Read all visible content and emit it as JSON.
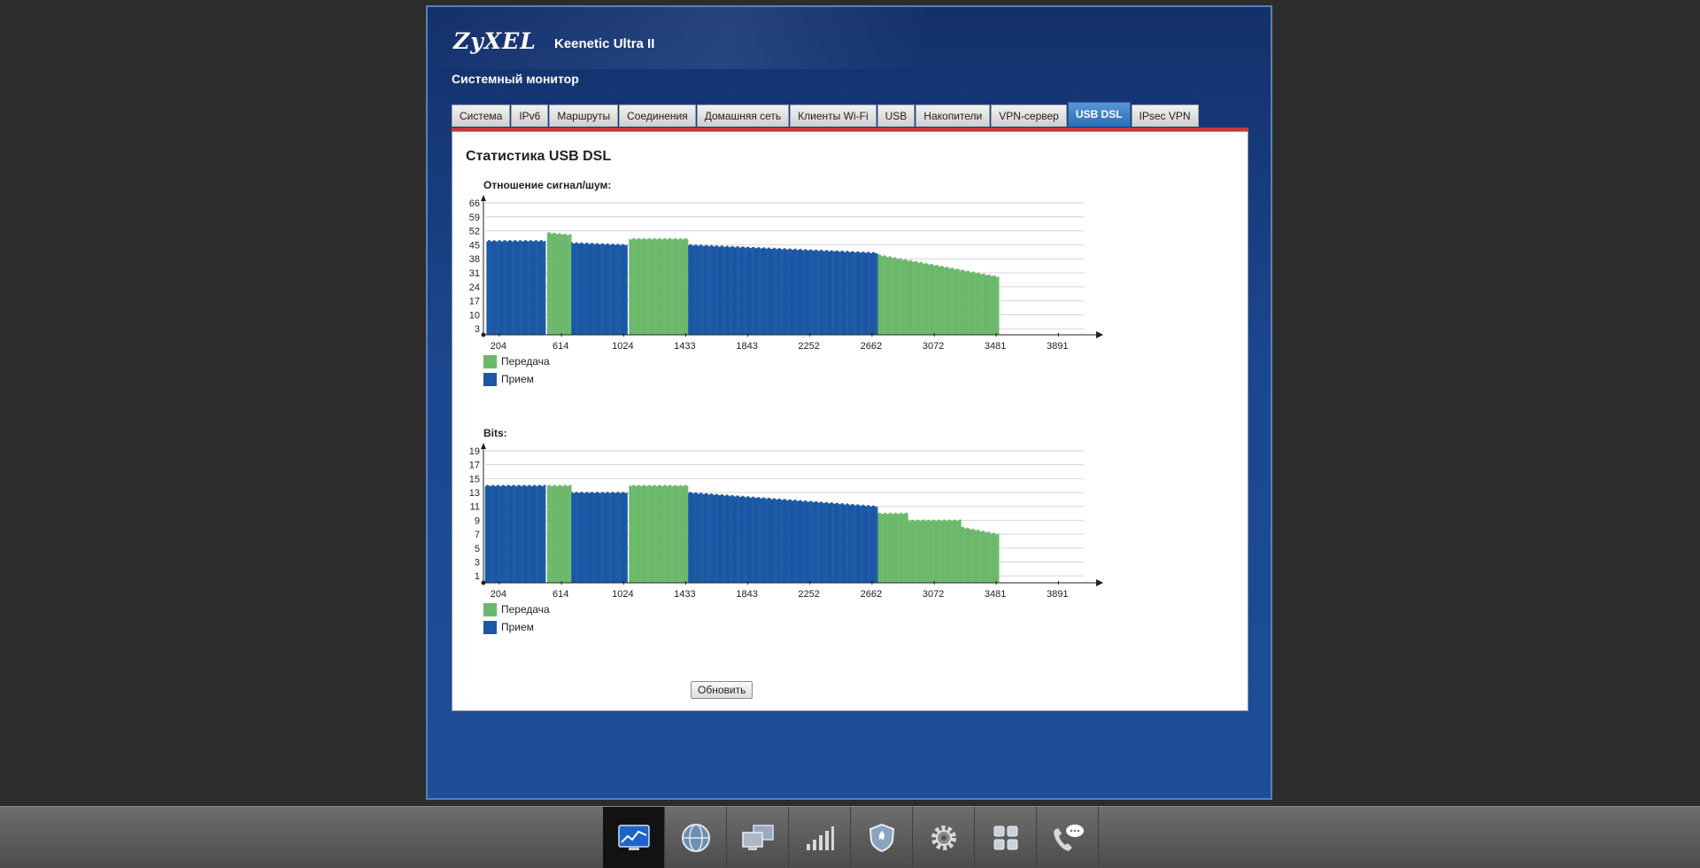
{
  "brand": {
    "logo": "ZyXEL",
    "model": "Keenetic Ultra II"
  },
  "section_title": "Системный монитор",
  "tabs": [
    {
      "label": "Система",
      "active": false
    },
    {
      "label": "IPv6",
      "active": false
    },
    {
      "label": "Маршруты",
      "active": false
    },
    {
      "label": "Соединения",
      "active": false
    },
    {
      "label": "Домашняя сеть",
      "active": false
    },
    {
      "label": "Клиенты Wi-Fi",
      "active": false
    },
    {
      "label": "USB",
      "active": false
    },
    {
      "label": "Накопители",
      "active": false
    },
    {
      "label": "VPN-сервер",
      "active": false
    },
    {
      "label": "USB DSL",
      "active": true
    },
    {
      "label": "IPsec VPN",
      "active": false
    }
  ],
  "panel_title": "Статистика USB DSL",
  "refresh_label": "Обновить",
  "colors": {
    "tx": "#6bb86b",
    "rx": "#1b57a4",
    "accent": "#c9363f",
    "active_tab": "#3a7cc6"
  },
  "legend": {
    "tx": "Передача",
    "rx": "Прием"
  },
  "taskbar": [
    {
      "icon": "monitor-chart-icon",
      "active": true
    },
    {
      "icon": "globe-icon",
      "active": false
    },
    {
      "icon": "network-computers-icon",
      "active": false
    },
    {
      "icon": "signal-bars-icon",
      "active": false
    },
    {
      "icon": "shield-icon",
      "active": false
    },
    {
      "icon": "gear-icon",
      "active": false
    },
    {
      "icon": "apps-grid-icon",
      "active": false
    },
    {
      "icon": "phone-chat-icon",
      "active": false
    }
  ],
  "chart_data": [
    {
      "type": "bar",
      "title": "Отношение сигнал/шум:",
      "yticks": [
        "3",
        "10",
        "17",
        "24",
        "31",
        "38",
        "45",
        "52",
        "59",
        "66"
      ],
      "xticks": [
        "204",
        "614",
        "1024",
        "1433",
        "1843",
        "2252",
        "2662",
        "3072",
        "3481",
        "3891"
      ],
      "xlim": [
        0,
        4000
      ],
      "ylim": [
        0,
        66
      ],
      "series": [
        {
          "name": "Передача",
          "segments": [
            {
              "from": 420,
              "to": 580,
              "start": 51,
              "end": 50
            },
            {
              "from": 960,
              "to": 1350,
              "start": 48,
              "end": 48
            },
            {
              "from": 2600,
              "to": 3400,
              "start": 40,
              "end": 29
            }
          ]
        },
        {
          "name": "Прием",
          "segments": [
            {
              "from": 20,
              "to": 410,
              "start": 47,
              "end": 47
            },
            {
              "from": 580,
              "to": 950,
              "start": 46,
              "end": 45
            },
            {
              "from": 1350,
              "to": 2600,
              "start": 45,
              "end": 41
            }
          ]
        }
      ]
    },
    {
      "type": "bar",
      "title": "Bits:",
      "yticks": [
        "1",
        "3",
        "5",
        "7",
        "9",
        "11",
        "13",
        "15",
        "17",
        "19"
      ],
      "xticks": [
        "204",
        "614",
        "1024",
        "1433",
        "1843",
        "2252",
        "2662",
        "3072",
        "3481",
        "3891"
      ],
      "xlim": [
        0,
        4000
      ],
      "ylim": [
        0,
        19
      ],
      "series": [
        {
          "name": "Передача",
          "segments": [
            {
              "from": 420,
              "to": 580,
              "start": 14,
              "end": 14
            },
            {
              "from": 960,
              "to": 1350,
              "start": 14,
              "end": 14
            },
            {
              "from": 2600,
              "to": 2800,
              "start": 10,
              "end": 10
            },
            {
              "from": 2800,
              "to": 3150,
              "start": 9,
              "end": 9
            },
            {
              "from": 3150,
              "to": 3400,
              "start": 8,
              "end": 7
            }
          ]
        },
        {
          "name": "Прием",
          "segments": [
            {
              "from": 10,
              "to": 410,
              "start": 14,
              "end": 14
            },
            {
              "from": 580,
              "to": 950,
              "start": 13,
              "end": 13
            },
            {
              "from": 1350,
              "to": 2600,
              "start": 13,
              "end": 11
            }
          ]
        }
      ]
    }
  ]
}
